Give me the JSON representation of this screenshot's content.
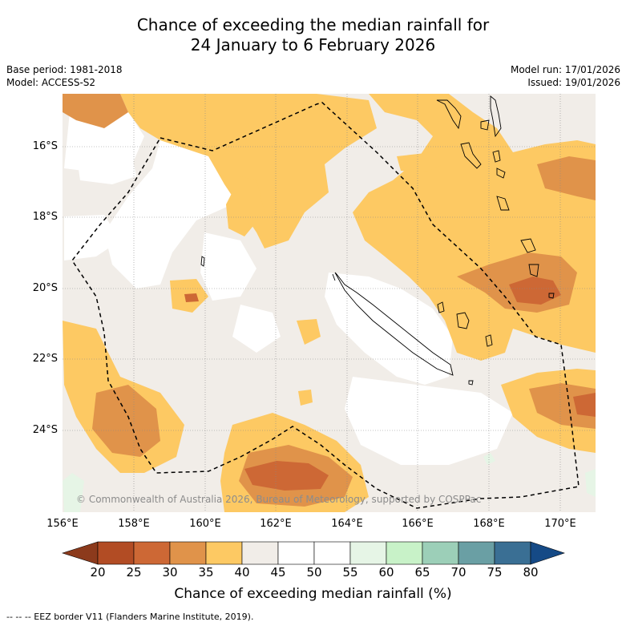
{
  "title": {
    "line1": "Chance of exceeding the median rainfall for",
    "line2": "24 January to 6 February 2026"
  },
  "meta": {
    "base_period": "Base period: 1981-2018",
    "model": "Model: ACCESS-S2",
    "model_run": "Model run: 17/01/2026",
    "issued": "Issued: 19/01/2026"
  },
  "map": {
    "latitude_labels": [
      "16°S",
      "18°S",
      "20°S",
      "22°S",
      "24°S"
    ],
    "longitude_labels": [
      "156°E",
      "158°E",
      "160°E",
      "162°E",
      "164°E",
      "166°E",
      "168°E",
      "170°E"
    ],
    "copyright": "© Commonwealth of Australia 2026, Bureau of Meteorology, supported by COSPPac",
    "eez_line_color": "#000000"
  },
  "colorbar": {
    "title": "Chance of exceeding median rainfall (%)",
    "labels": [
      "20",
      "25",
      "30",
      "35",
      "40",
      "45",
      "50",
      "55",
      "60",
      "65",
      "70",
      "75",
      "80"
    ],
    "colors": [
      "#8c3a1c",
      "#b24c24",
      "#cd6835",
      "#e0934a",
      "#fdc963",
      "#f1ede8",
      "#ffffff",
      "#ffffff",
      "#e6f5e6",
      "#c8f2c8",
      "#9ccfb8",
      "#6a9fa4",
      "#3a6f94",
      "#154a86"
    ]
  },
  "footnote": "-- -- -- EEZ border V11 (Flanders Marine Institute, 2019)."
}
